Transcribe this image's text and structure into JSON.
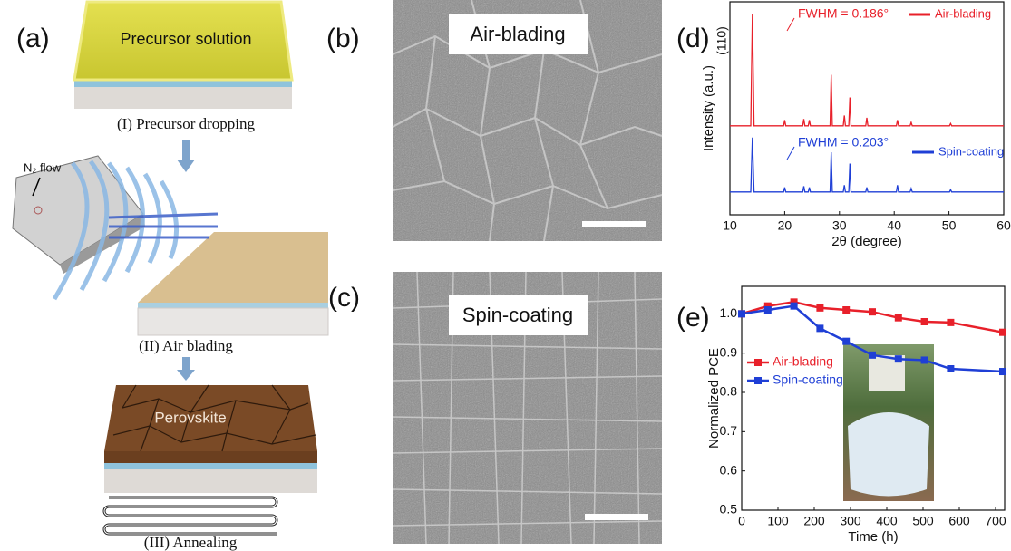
{
  "panel_labels": [
    "(a)",
    "(b)",
    "(c)",
    "(d)",
    "(e)"
  ],
  "schematic": {
    "top_layer": "Precursor solution",
    "step1": "(I) Precursor dropping",
    "gas": "N₂ flow",
    "step2": "(II) Air blading",
    "film": "Perovskite",
    "step3": "(III) Annealing"
  },
  "sem": [
    {
      "label": "Air-blading"
    },
    {
      "label": "Spin-coating"
    }
  ],
  "chart_data": [
    {
      "type": "spectrum",
      "y_label": "Intensity (a.u.)",
      "x_label": "2θ (degree)",
      "annotations": [
        "(110)",
        "FWHM = 0.186°",
        "FWHM = 0.203°"
      ],
      "x": [
        10,
        13.8,
        14.1,
        14.4,
        19.8,
        20.0,
        20.2,
        23.3,
        23.5,
        23.7,
        24.3,
        24.5,
        24.7,
        28.3,
        28.5,
        28.7,
        30.7,
        30.9,
        31.1,
        31.7,
        31.9,
        32.1,
        34.8,
        35.0,
        35.2,
        40.4,
        40.6,
        40.8,
        42.9,
        43.1,
        43.3,
        50.1,
        50.3,
        50.5,
        60
      ],
      "series": [
        {
          "name": "Air-blading",
          "color": "#e8202a",
          "values": [
            0.01,
            0.01,
            1.0,
            0.01,
            0.01,
            0.06,
            0.01,
            0.01,
            0.07,
            0.01,
            0.01,
            0.06,
            0.01,
            0.01,
            0.46,
            0.01,
            0.01,
            0.1,
            0.01,
            0.01,
            0.26,
            0.01,
            0.01,
            0.08,
            0.01,
            0.01,
            0.06,
            0.01,
            0.01,
            0.04,
            0.01,
            0.01,
            0.03,
            0.01,
            0.01
          ]
        },
        {
          "name": "Spin-coating",
          "color": "#1f3fd6",
          "values": [
            0.01,
            0.01,
            0.49,
            0.01,
            0.01,
            0.05,
            0.01,
            0.01,
            0.06,
            0.01,
            0.01,
            0.05,
            0.01,
            0.01,
            0.36,
            0.01,
            0.01,
            0.07,
            0.01,
            0.01,
            0.26,
            0.01,
            0.01,
            0.05,
            0.01,
            0.01,
            0.07,
            0.01,
            0.01,
            0.04,
            0.01,
            0.01,
            0.03,
            0.01,
            0.01
          ]
        }
      ],
      "xlim": [
        10,
        60
      ],
      "xticks": [
        10,
        20,
        30,
        40,
        50,
        60
      ],
      "ylim": [
        0,
        1
      ]
    },
    {
      "type": "line",
      "y_label": "Normalized PCE",
      "x_label": "Time (h)",
      "x": [
        0,
        72,
        144,
        216,
        288,
        360,
        432,
        504,
        576,
        720
      ],
      "series": [
        {
          "name": "Air-blading",
          "color": "#e8202a",
          "values": [
            1.0,
            1.02,
            1.03,
            1.015,
            1.01,
            1.005,
            0.99,
            0.98,
            0.978,
            0.953
          ]
        },
        {
          "name": "Spin-coating",
          "color": "#1f3fd6",
          "values": [
            1.0,
            1.01,
            1.02,
            0.963,
            0.93,
            0.895,
            0.885,
            0.882,
            0.86,
            0.853
          ]
        }
      ],
      "xlim": [
        0,
        725
      ],
      "xticks": [
        0,
        100,
        200,
        300,
        400,
        500,
        600,
        700
      ],
      "ylim": [
        0.5,
        1.07
      ],
      "yticks": [
        0.5,
        0.6,
        0.7,
        0.8,
        0.9,
        {
          "value": 1,
          "label": "1.0"
        }
      ],
      "legend": "left"
    }
  ]
}
